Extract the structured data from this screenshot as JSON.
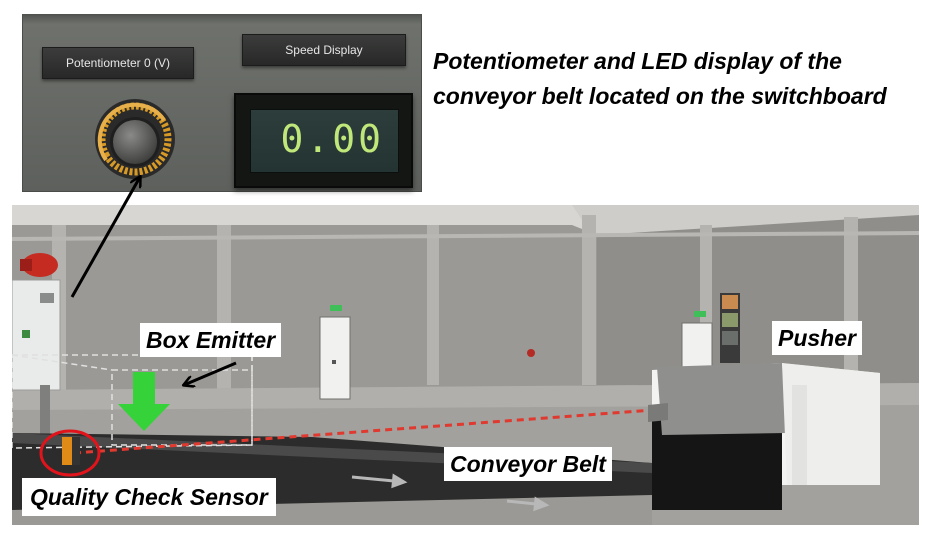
{
  "panel": {
    "potentiometer_label": "Potentiometer 0 (V)",
    "speed_display_label": "Speed Display",
    "speed_value": "0.00",
    "knob_icon": "potentiometer-knob-icon",
    "led_color": "#bfe77a"
  },
  "caption": "Potentiometer and LED display of the conveyor belt located on the switchboard",
  "labels": {
    "box_emitter": "Box Emitter",
    "pusher": "Pusher",
    "conveyor_belt": "Conveyor Belt",
    "quality_check_sensor": "Quality Check Sensor"
  },
  "scene": {
    "exit_sign_text": "",
    "emitter_arrow_color": "#35d23a",
    "laser_color": "#e0392f",
    "sensor_highlight_color": "#e1141b"
  }
}
